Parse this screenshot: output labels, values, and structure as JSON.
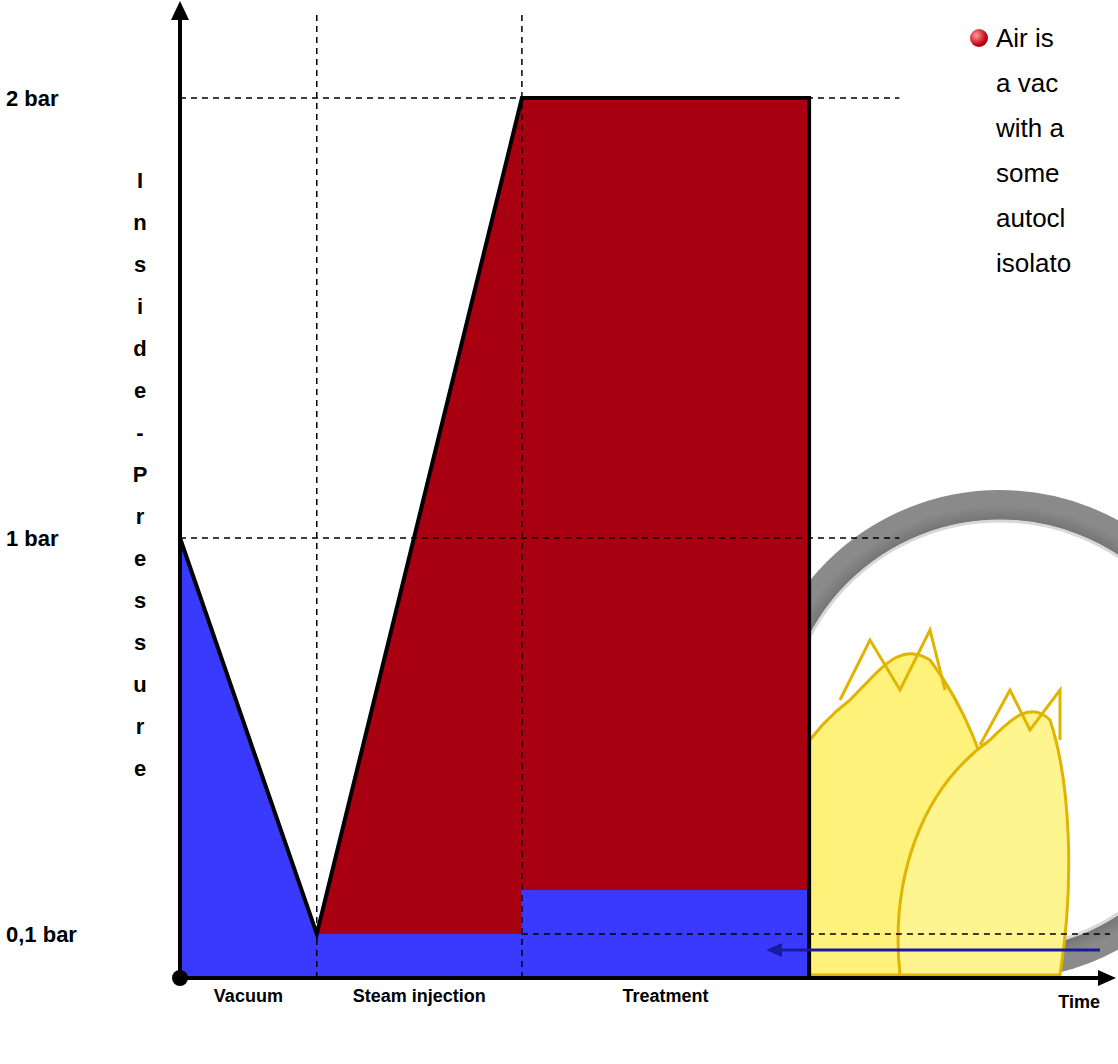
{
  "chart_data": {
    "type": "area",
    "stacked": true,
    "x": [
      0,
      1,
      2.5,
      2.5,
      4.6,
      4.6
    ],
    "series": [
      {
        "color": "#3a3aff",
        "values": [
          1,
          0.1,
          0.1,
          0.2,
          0.2,
          0
        ]
      },
      {
        "color": "#a80010",
        "values": [
          0,
          0,
          1.9,
          1.8,
          1.8,
          0
        ]
      }
    ],
    "xlim": [
      0,
      6.8
    ],
    "xticks": [
      {
        "value": 0.5,
        "label": "Vacuum"
      },
      {
        "value": 1.75,
        "label": "Steam injection"
      },
      {
        "value": 3.55,
        "label": "Treatment"
      }
    ],
    "ylim": [
      0,
      2.2
    ],
    "yticks": [
      {
        "value": 0.1,
        "label": "0,1 bar"
      },
      {
        "value": 1,
        "label": "1 bar"
      },
      {
        "value": 2,
        "label": "2 bar"
      }
    ],
    "y_label": "Inside-Pressure",
    "x_label": "Time",
    "annotations": [
      "Air is",
      "a vac",
      "with a",
      "some",
      "autocl",
      "isolato"
    ]
  }
}
